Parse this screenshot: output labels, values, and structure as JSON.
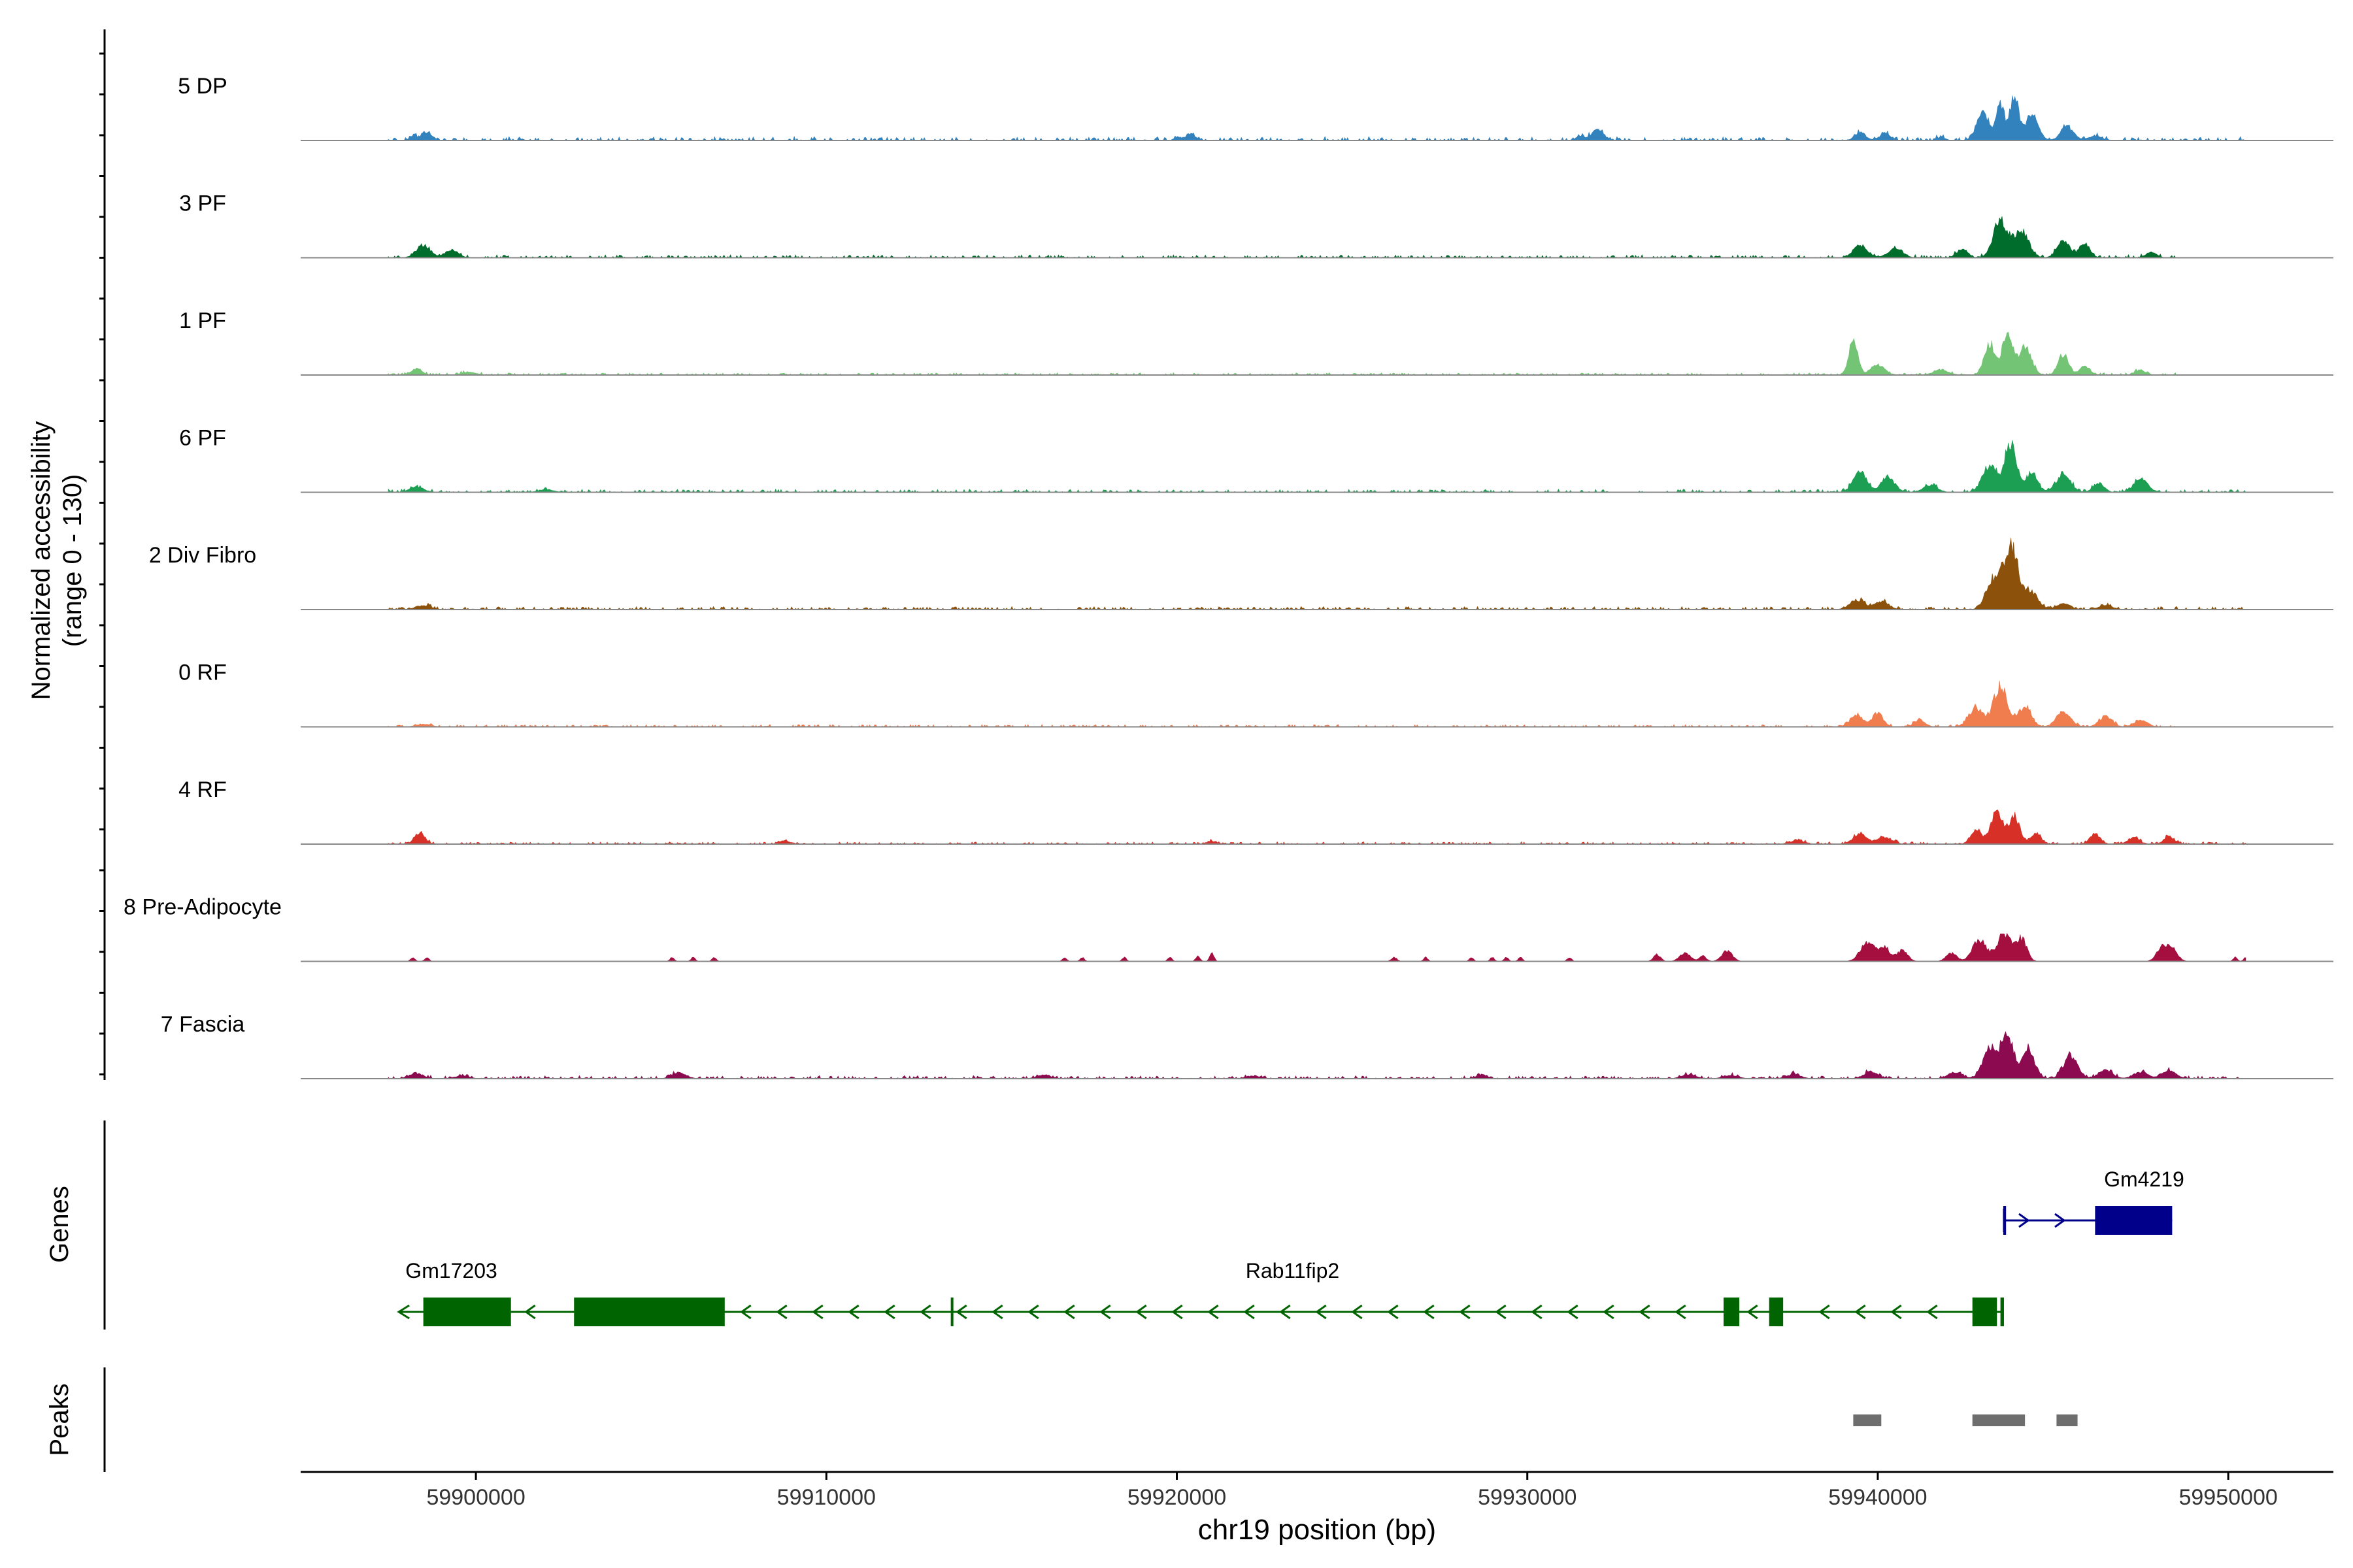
{
  "chart_data": {
    "type": "area",
    "title": "",
    "ylabel": [
      "Normalized accessibility",
      "(range 0 - 130)"
    ],
    "xlabel": "chr19 position (bp)",
    "ylim": [
      0,
      130
    ],
    "xlim": [
      59895000,
      59953000
    ],
    "xticks": [
      59900000,
      59910000,
      59920000,
      59930000,
      59940000,
      59950000
    ],
    "xtick_labels": [
      "59900000",
      "59910000",
      "59920000",
      "59930000",
      "59940000",
      "59950000"
    ],
    "grid": false,
    "legend": "none",
    "series": [
      {
        "name": "5 DP",
        "color": "#3182bd",
        "seed": 11,
        "noise": 5,
        "start": 59897500,
        "end": 59950500,
        "peaks": [
          [
            59898600,
            12,
            150
          ],
          [
            59898200,
            7,
            80
          ],
          [
            59920400,
            9,
            150
          ],
          [
            59920000,
            5,
            80
          ],
          [
            59932000,
            15,
            180
          ],
          [
            59931500,
            7,
            100
          ],
          [
            59939500,
            12,
            150
          ],
          [
            59940200,
            10,
            150
          ],
          [
            59941800,
            5,
            120
          ],
          [
            59943000,
            38,
            180
          ],
          [
            59943500,
            50,
            120
          ],
          [
            59943900,
            62,
            120
          ],
          [
            59944400,
            35,
            180
          ],
          [
            59945400,
            20,
            180
          ],
          [
            59946200,
            6,
            200
          ]
        ]
      },
      {
        "name": "3 PF",
        "color": "#006d2c",
        "seed": 23,
        "noise": 4,
        "start": 59897500,
        "end": 59948500,
        "peaks": [
          [
            59898500,
            18,
            200
          ],
          [
            59899300,
            12,
            180
          ],
          [
            59939500,
            18,
            200
          ],
          [
            59940500,
            14,
            200
          ],
          [
            59942400,
            12,
            150
          ],
          [
            59943500,
            55,
            200
          ],
          [
            59944100,
            40,
            200
          ],
          [
            59945300,
            24,
            180
          ],
          [
            59945900,
            20,
            150
          ],
          [
            59947800,
            8,
            150
          ]
        ]
      },
      {
        "name": "1 PF",
        "color": "#74c476",
        "seed": 37,
        "noise": 3,
        "start": 59897500,
        "end": 59948500,
        "peaks": [
          [
            59898300,
            9,
            150
          ],
          [
            59899800,
            4,
            200
          ],
          [
            59939300,
            48,
            130
          ],
          [
            59940000,
            14,
            200
          ],
          [
            59941800,
            8,
            200
          ],
          [
            59943200,
            45,
            160
          ],
          [
            59943700,
            58,
            140
          ],
          [
            59944200,
            40,
            180
          ],
          [
            59945300,
            28,
            150
          ],
          [
            59945900,
            12,
            150
          ],
          [
            59947500,
            7,
            150
          ]
        ]
      },
      {
        "name": "6 PF",
        "color": "#1c9f52",
        "seed": 41,
        "noise": 4,
        "start": 59897500,
        "end": 59950500,
        "peaks": [
          [
            59898300,
            8,
            200
          ],
          [
            59902000,
            4,
            200
          ],
          [
            59939500,
            28,
            200
          ],
          [
            59940300,
            20,
            200
          ],
          [
            59941500,
            10,
            200
          ],
          [
            59943200,
            40,
            200
          ],
          [
            59943800,
            68,
            180
          ],
          [
            59944400,
            28,
            150
          ],
          [
            59945300,
            25,
            200
          ],
          [
            59946300,
            14,
            150
          ],
          [
            59947500,
            20,
            200
          ]
        ]
      },
      {
        "name": "2 Div Fibro",
        "color": "#8c510a",
        "seed": 53,
        "noise": 4,
        "start": 59897500,
        "end": 59950500,
        "peaks": [
          [
            59898500,
            6,
            200
          ],
          [
            59939400,
            14,
            200
          ],
          [
            59940100,
            12,
            200
          ],
          [
            59943300,
            40,
            200
          ],
          [
            59943800,
            90,
            220
          ],
          [
            59944400,
            25,
            180
          ],
          [
            59945300,
            8,
            200
          ],
          [
            59946500,
            6,
            200
          ]
        ]
      },
      {
        "name": "0 RF",
        "color": "#f07d4e",
        "seed": 67,
        "noise": 3,
        "start": 59897500,
        "end": 59948500,
        "peaks": [
          [
            59898500,
            4,
            200
          ],
          [
            59939400,
            18,
            180
          ],
          [
            59940000,
            20,
            150
          ],
          [
            59941200,
            10,
            150
          ],
          [
            59942800,
            28,
            200
          ],
          [
            59943500,
            58,
            200
          ],
          [
            59944200,
            30,
            180
          ],
          [
            59945300,
            22,
            200
          ],
          [
            59946500,
            15,
            180
          ],
          [
            59947500,
            10,
            180
          ]
        ]
      },
      {
        "name": "4 RF",
        "color": "#d73027",
        "seed": 79,
        "noise": 3,
        "start": 59897500,
        "end": 59950500,
        "peaks": [
          [
            59898400,
            17,
            150
          ],
          [
            59908800,
            5,
            150
          ],
          [
            59921000,
            4,
            150
          ],
          [
            59937700,
            5,
            200
          ],
          [
            59939500,
            14,
            200
          ],
          [
            59940200,
            10,
            200
          ],
          [
            59942800,
            20,
            150
          ],
          [
            59943400,
            45,
            180
          ],
          [
            59943900,
            40,
            150
          ],
          [
            59944500,
            15,
            150
          ],
          [
            59946200,
            15,
            150
          ],
          [
            59947300,
            10,
            150
          ],
          [
            59948300,
            10,
            150
          ]
        ]
      },
      {
        "name": "8 Pre-Adipocyte",
        "color": "#a50f3f",
        "seed": 97,
        "noise": 0,
        "start": 59897500,
        "end": 59950500,
        "peaks": [
          [
            59898200,
            6,
            60
          ],
          [
            59898600,
            6,
            60
          ],
          [
            59905600,
            6,
            60
          ],
          [
            59906200,
            6,
            60
          ],
          [
            59906800,
            6,
            60
          ],
          [
            59916800,
            6,
            60
          ],
          [
            59917300,
            6,
            60
          ],
          [
            59918500,
            6,
            60
          ],
          [
            59919800,
            6,
            60
          ],
          [
            59920600,
            8,
            60
          ],
          [
            59921000,
            12,
            60
          ],
          [
            59926200,
            6,
            80
          ],
          [
            59927100,
            6,
            60
          ],
          [
            59928400,
            6,
            60
          ],
          [
            59929000,
            6,
            60
          ],
          [
            59929400,
            6,
            60
          ],
          [
            59929800,
            6,
            60
          ],
          [
            59931200,
            6,
            60
          ],
          [
            59933700,
            10,
            100
          ],
          [
            59934500,
            12,
            150
          ],
          [
            59935000,
            8,
            100
          ],
          [
            59935700,
            15,
            150
          ],
          [
            59939700,
            28,
            200
          ],
          [
            59940200,
            20,
            150
          ],
          [
            59940700,
            16,
            150
          ],
          [
            59942100,
            12,
            150
          ],
          [
            59942900,
            30,
            200
          ],
          [
            59943600,
            40,
            200
          ],
          [
            59944100,
            32,
            150
          ],
          [
            59948100,
            20,
            150
          ],
          [
            59948400,
            18,
            150
          ],
          [
            59950200,
            6,
            60
          ],
          [
            59950500,
            6,
            60
          ]
        ]
      },
      {
        "name": "7 Fascia",
        "color": "#8b0a50",
        "seed": 101,
        "noise": 4,
        "start": 59897500,
        "end": 59950500,
        "peaks": [
          [
            59898300,
            7,
            200
          ],
          [
            59899600,
            4,
            200
          ],
          [
            59905800,
            8,
            200
          ],
          [
            59916200,
            5,
            200
          ],
          [
            59922200,
            4,
            200
          ],
          [
            59928700,
            6,
            150
          ],
          [
            59934600,
            6,
            200
          ],
          [
            59935800,
            5,
            200
          ],
          [
            59937600,
            6,
            200
          ],
          [
            59939800,
            10,
            200
          ],
          [
            59942200,
            8,
            200
          ],
          [
            59943200,
            45,
            200
          ],
          [
            59943700,
            62,
            180
          ],
          [
            59944300,
            40,
            180
          ],
          [
            59945500,
            32,
            200
          ],
          [
            59946500,
            12,
            200
          ],
          [
            59947500,
            10,
            200
          ],
          [
            59948300,
            12,
            200
          ]
        ]
      }
    ],
    "genes": [
      {
        "name": "Gm4219",
        "strand": "+",
        "color": "#00008b",
        "start": 59943600,
        "end": 59948400,
        "exons": [
          [
            59943580,
            59943660
          ],
          [
            59946200,
            59948400
          ]
        ],
        "label_pos": 59947600
      },
      {
        "name": "Gm17203",
        "strand": "-",
        "color": "#006400",
        "start": 59897800,
        "end": 59901000,
        "exons": [
          [
            59898500,
            59901000
          ]
        ],
        "label_pos": 59899300
      },
      {
        "name": "Rab11fip2",
        "strand": "-",
        "color": "#006400",
        "start": 59901000,
        "end": 59943600,
        "exons": [
          [
            59902800,
            59907100
          ],
          [
            59913550,
            59913610
          ],
          [
            59935600,
            59936050
          ],
          [
            59936900,
            59937300
          ],
          [
            59942700,
            59943400
          ],
          [
            59943500,
            59943600
          ]
        ],
        "label_pos": 59923300
      }
    ],
    "peaks_track": [
      [
        59939300,
        59940100
      ],
      [
        59942700,
        59944200
      ],
      [
        59945100,
        59945700
      ]
    ],
    "track_labels": {
      "genes": "Genes",
      "peaks": "Peaks"
    }
  }
}
